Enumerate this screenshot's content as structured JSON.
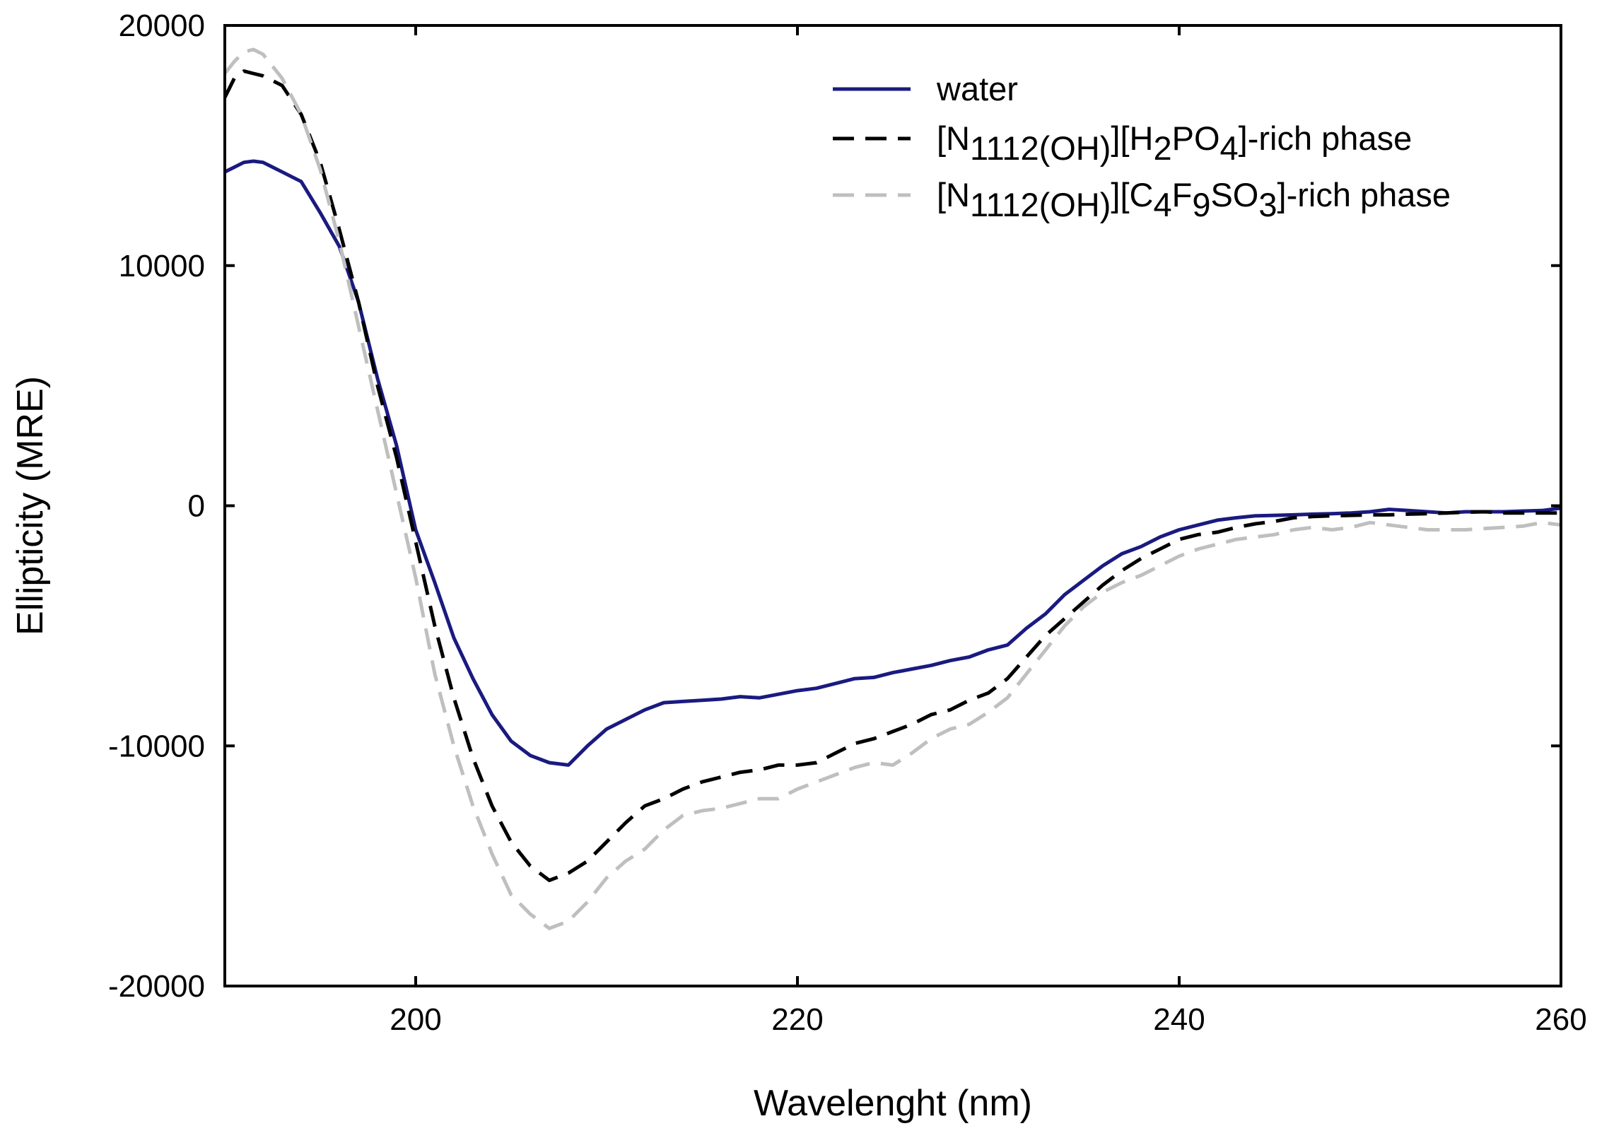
{
  "chart_data": {
    "type": "line",
    "title": "",
    "xlabel": "Wavelenght (nm)",
    "ylabel": "Ellipticity (MRE)",
    "xlim": [
      190,
      260
    ],
    "ylim": [
      -20000,
      20000
    ],
    "x_ticks": [
      200,
      220,
      240,
      260
    ],
    "x_tick_labels": [
      "200",
      "220",
      "240",
      "260"
    ],
    "y_ticks": [
      20000,
      10000,
      0,
      -10000,
      -20000
    ],
    "y_tick_labels": [
      "20000",
      "10000",
      "0",
      "-10000",
      "-20000"
    ],
    "grid": false,
    "legend_position": "top-right",
    "series": [
      {
        "name": "water",
        "legend": {
          "parts": [
            {
              "t": "water"
            }
          ]
        },
        "color": "#1a1a80",
        "dash": "solid",
        "x": [
          190,
          190.5,
          191,
          191.5,
          192,
          193,
          194,
          195,
          196,
          197,
          198,
          199,
          200,
          201,
          202,
          203,
          204,
          205,
          206,
          207,
          208,
          209,
          210,
          211,
          212,
          213,
          214,
          215,
          216,
          217,
          218,
          219,
          220,
          221,
          222,
          223,
          224,
          225,
          226,
          227,
          228,
          229,
          230,
          231,
          232,
          233,
          234,
          235,
          236,
          237,
          238,
          239,
          240,
          241,
          242,
          243,
          244,
          245,
          246,
          247,
          248,
          249,
          250,
          251,
          252,
          253,
          254,
          255,
          256,
          257,
          258,
          259,
          260
        ],
        "y": [
          13900,
          14100,
          14300,
          14350,
          14300,
          13900,
          13500,
          12200,
          10800,
          8500,
          5300,
          2500,
          -1000,
          -3200,
          -5500,
          -7200,
          -8700,
          -9800,
          -10400,
          -10700,
          -10800,
          -10000,
          -9300,
          -8900,
          -8500,
          -8200,
          -8150,
          -8100,
          -8050,
          -7950,
          -8000,
          -7850,
          -7700,
          -7600,
          -7400,
          -7200,
          -7150,
          -6950,
          -6800,
          -6650,
          -6450,
          -6300,
          -6000,
          -5800,
          -5100,
          -4500,
          -3700,
          -3100,
          -2500,
          -2000,
          -1700,
          -1300,
          -1000,
          -800,
          -600,
          -500,
          -420,
          -400,
          -380,
          -350,
          -330,
          -300,
          -250,
          -150,
          -200,
          -250,
          -300,
          -250,
          -250,
          -250,
          -220,
          -200,
          -100
        ]
      },
      {
        "name": "[N1112(OH)][H2PO4]-rich phase",
        "legend": {
          "parts": [
            {
              "t": "[N"
            },
            {
              "t": "1112(OH)",
              "sub": true
            },
            {
              "t": "][H"
            },
            {
              "t": "2",
              "sub": true
            },
            {
              "t": "PO"
            },
            {
              "t": "4",
              "sub": true
            },
            {
              "t": "]-rich phase"
            }
          ]
        },
        "color": "#000000",
        "dash": "long-dash",
        "x": [
          190,
          190.5,
          191,
          191.5,
          192,
          193,
          194,
          195,
          196,
          197,
          198,
          199,
          200,
          201,
          202,
          203,
          204,
          205,
          206,
          207,
          208,
          209,
          210,
          211,
          212,
          213,
          214,
          215,
          216,
          217,
          218,
          219,
          220,
          221,
          222,
          223,
          224,
          225,
          226,
          227,
          228,
          229,
          230,
          231,
          232,
          233,
          234,
          235,
          236,
          237,
          238,
          239,
          240,
          241,
          242,
          243,
          244,
          245,
          246,
          247,
          248,
          249,
          250,
          251,
          252,
          253,
          254,
          255,
          256,
          257,
          258,
          259,
          260
        ],
        "y": [
          17000,
          17800,
          18100,
          18000,
          17900,
          17500,
          16300,
          14300,
          11500,
          8500,
          5000,
          2000,
          -1500,
          -5000,
          -8000,
          -10500,
          -12500,
          -14000,
          -15000,
          -15600,
          -15300,
          -14800,
          -14000,
          -13200,
          -12500,
          -12200,
          -11800,
          -11500,
          -11300,
          -11100,
          -11000,
          -10800,
          -10800,
          -10700,
          -10300,
          -9900,
          -9700,
          -9400,
          -9100,
          -8700,
          -8500,
          -8100,
          -7800,
          -7200,
          -6300,
          -5400,
          -4700,
          -4000,
          -3300,
          -2700,
          -2200,
          -1800,
          -1400,
          -1200,
          -1100,
          -900,
          -750,
          -650,
          -500,
          -450,
          -420,
          -400,
          -380,
          -380,
          -350,
          -330,
          -300,
          -270,
          -250,
          -300,
          -300,
          -300,
          -300
        ]
      },
      {
        "name": "[N1112(OH)][C4F9SO3]-rich phase",
        "legend": {
          "parts": [
            {
              "t": "[N"
            },
            {
              "t": "1112(OH)",
              "sub": true
            },
            {
              "t": "][C"
            },
            {
              "t": "4",
              "sub": true
            },
            {
              "t": "F"
            },
            {
              "t": "9",
              "sub": true
            },
            {
              "t": "SO"
            },
            {
              "t": "3",
              "sub": true
            },
            {
              "t": "]-rich phase"
            }
          ]
        },
        "color": "#bfbfbf",
        "dash": "long-dash",
        "x": [
          190,
          190.5,
          191,
          191.5,
          192,
          193,
          194,
          195,
          196,
          197,
          198,
          199,
          200,
          201,
          202,
          203,
          204,
          205,
          206,
          207,
          208,
          209,
          210,
          211,
          212,
          213,
          214,
          215,
          216,
          217,
          218,
          219,
          220,
          221,
          222,
          223,
          224,
          225,
          226,
          227,
          228,
          229,
          230,
          231,
          232,
          233,
          234,
          235,
          236,
          237,
          238,
          239,
          240,
          241,
          242,
          243,
          244,
          245,
          246,
          247,
          248,
          249,
          250,
          251,
          252,
          253,
          254,
          255,
          256,
          257,
          258,
          259,
          260
        ],
        "y": [
          18000,
          18500,
          18900,
          19000,
          18800,
          17800,
          16300,
          14000,
          11000,
          7500,
          4000,
          500,
          -3000,
          -7000,
          -10000,
          -12500,
          -14500,
          -16200,
          -17000,
          -17600,
          -17300,
          -16500,
          -15500,
          -14800,
          -14300,
          -13500,
          -12900,
          -12700,
          -12600,
          -12400,
          -12200,
          -12200,
          -11800,
          -11500,
          -11200,
          -10900,
          -10700,
          -10800,
          -10300,
          -9700,
          -9300,
          -9100,
          -8600,
          -8000,
          -7000,
          -6000,
          -5000,
          -4200,
          -3600,
          -3200,
          -2900,
          -2500,
          -2100,
          -1800,
          -1600,
          -1400,
          -1300,
          -1200,
          -1000,
          -900,
          -1000,
          -900,
          -700,
          -800,
          -900,
          -1000,
          -1000,
          -1000,
          -950,
          -900,
          -850,
          -700,
          -800
        ]
      }
    ]
  }
}
